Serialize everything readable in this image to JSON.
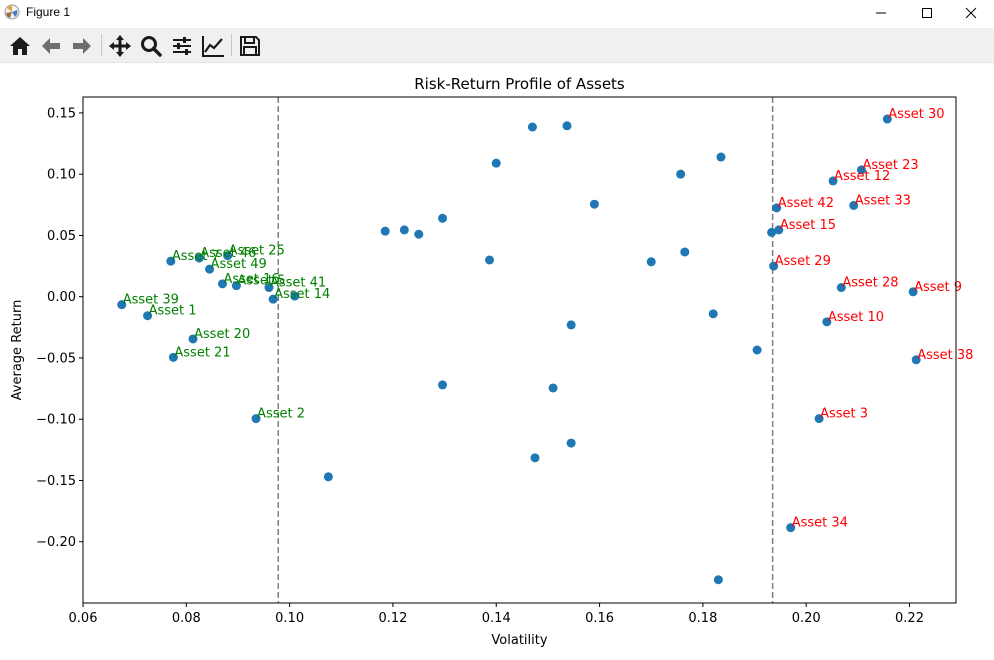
{
  "window": {
    "title": "Figure 1"
  },
  "toolbar": {
    "buttons": [
      {
        "name": "home-button",
        "icon": "home-icon"
      },
      {
        "name": "back-button",
        "icon": "arrow-left-icon"
      },
      {
        "name": "forward-button",
        "icon": "arrow-right-icon"
      },
      {
        "name": "pan-button",
        "icon": "move-icon"
      },
      {
        "name": "zoom-button",
        "icon": "magnifier-icon"
      },
      {
        "name": "configure-subplots-button",
        "icon": "sliders-icon"
      },
      {
        "name": "edit-axis-button",
        "icon": "line-chart-icon"
      },
      {
        "name": "save-button",
        "icon": "floppy-disk-icon"
      }
    ]
  },
  "chart_data": {
    "type": "scatter",
    "title": "Risk-Return Profile of Assets",
    "xlabel": "Volatility",
    "ylabel": "Average Return",
    "xlim": [
      0.06,
      0.229
    ],
    "ylim": [
      -0.25,
      0.163
    ],
    "xticks": [
      0.06,
      0.08,
      0.1,
      0.12,
      0.14,
      0.16,
      0.18,
      0.2,
      0.22
    ],
    "xtick_labels": [
      "0.06",
      "0.08",
      "0.10",
      "0.12",
      "0.14",
      "0.16",
      "0.18",
      "0.20",
      "0.22"
    ],
    "yticks": [
      0.15,
      0.1,
      0.05,
      0.0,
      -0.05,
      -0.1,
      -0.15,
      -0.2
    ],
    "ytick_labels": [
      "0.15",
      "0.10",
      "0.05",
      "0.00",
      "−0.05",
      "−0.10",
      "−0.15",
      "−0.20"
    ],
    "vlines": [
      0.0978,
      0.1935
    ],
    "colors": {
      "point": "#1f77b4",
      "low": "#008000",
      "high": "#ff0000",
      "vline": "#808080"
    },
    "points": [
      {
        "x": 0.0675,
        "y": -0.0065,
        "label": "Asset 39",
        "group": "low"
      },
      {
        "x": 0.0725,
        "y": -0.0155,
        "label": "Asset 1",
        "group": "low"
      },
      {
        "x": 0.077,
        "y": 0.029,
        "label": "Asset 7",
        "group": "low"
      },
      {
        "x": 0.0775,
        "y": -0.0495,
        "label": "Asset 21",
        "group": "low"
      },
      {
        "x": 0.0813,
        "y": -0.0345,
        "label": "Asset 20",
        "group": "low"
      },
      {
        "x": 0.0825,
        "y": 0.0315,
        "label": "Asset 46",
        "group": "low"
      },
      {
        "x": 0.0845,
        "y": 0.0225,
        "label": "Asset 49",
        "group": "low"
      },
      {
        "x": 0.087,
        "y": 0.0105,
        "label": "Asset 16",
        "group": "low"
      },
      {
        "x": 0.088,
        "y": 0.0335,
        "label": "Asset 25",
        "group": "low"
      },
      {
        "x": 0.0897,
        "y": 0.009,
        "label": "Asset 5",
        "group": "low"
      },
      {
        "x": 0.0935,
        "y": -0.0995,
        "label": "Asset 2",
        "group": "low"
      },
      {
        "x": 0.096,
        "y": 0.0075,
        "label": "Asset 41",
        "group": "low"
      },
      {
        "x": 0.0968,
        "y": -0.002,
        "label": "Asset 14",
        "group": "low"
      },
      {
        "x": 0.101,
        "y": 0.0005,
        "label": "",
        "group": "low"
      },
      {
        "x": 0.1075,
        "y": -0.147,
        "label": "",
        "group": "mid"
      },
      {
        "x": 0.1185,
        "y": 0.0535,
        "label": "",
        "group": "mid"
      },
      {
        "x": 0.1222,
        "y": 0.0545,
        "label": "",
        "group": "mid"
      },
      {
        "x": 0.125,
        "y": 0.051,
        "label": "",
        "group": "mid"
      },
      {
        "x": 0.1296,
        "y": 0.064,
        "label": "",
        "group": "mid"
      },
      {
        "x": 0.1296,
        "y": -0.072,
        "label": "",
        "group": "mid"
      },
      {
        "x": 0.1387,
        "y": 0.03,
        "label": "",
        "group": "mid"
      },
      {
        "x": 0.14,
        "y": 0.109,
        "label": "",
        "group": "mid"
      },
      {
        "x": 0.147,
        "y": 0.1385,
        "label": "",
        "group": "mid"
      },
      {
        "x": 0.1475,
        "y": -0.1315,
        "label": "",
        "group": "mid"
      },
      {
        "x": 0.151,
        "y": -0.0745,
        "label": "",
        "group": "mid"
      },
      {
        "x": 0.1537,
        "y": 0.1395,
        "label": "",
        "group": "mid"
      },
      {
        "x": 0.1545,
        "y": -0.023,
        "label": "",
        "group": "mid"
      },
      {
        "x": 0.1545,
        "y": -0.1195,
        "label": "",
        "group": "mid"
      },
      {
        "x": 0.159,
        "y": 0.0755,
        "label": "",
        "group": "mid"
      },
      {
        "x": 0.17,
        "y": 0.0285,
        "label": "",
        "group": "mid"
      },
      {
        "x": 0.1757,
        "y": 0.1,
        "label": "",
        "group": "mid"
      },
      {
        "x": 0.1765,
        "y": 0.0365,
        "label": "",
        "group": "mid"
      },
      {
        "x": 0.182,
        "y": -0.014,
        "label": "",
        "group": "mid"
      },
      {
        "x": 0.183,
        "y": -0.231,
        "label": "",
        "group": "mid"
      },
      {
        "x": 0.1835,
        "y": 0.114,
        "label": "",
        "group": "mid"
      },
      {
        "x": 0.1905,
        "y": -0.0435,
        "label": "",
        "group": "mid"
      },
      {
        "x": 0.1933,
        "y": 0.0525,
        "label": "",
        "group": "mid"
      },
      {
        "x": 0.1937,
        "y": 0.025,
        "label": "Asset 29",
        "group": "high"
      },
      {
        "x": 0.1943,
        "y": 0.0725,
        "label": "Asset 42",
        "group": "high"
      },
      {
        "x": 0.1947,
        "y": 0.0545,
        "label": "Asset 15",
        "group": "high"
      },
      {
        "x": 0.197,
        "y": -0.1885,
        "label": "Asset 34",
        "group": "high"
      },
      {
        "x": 0.2025,
        "y": -0.0995,
        "label": "Asset 3",
        "group": "high"
      },
      {
        "x": 0.204,
        "y": -0.0205,
        "label": "Asset 10",
        "group": "high"
      },
      {
        "x": 0.2052,
        "y": 0.0945,
        "label": "Asset 12",
        "group": "high"
      },
      {
        "x": 0.2068,
        "y": 0.0075,
        "label": "Asset 28",
        "group": "high"
      },
      {
        "x": 0.2092,
        "y": 0.0745,
        "label": "Asset 33",
        "group": "high"
      },
      {
        "x": 0.2107,
        "y": 0.1035,
        "label": "Asset 23",
        "group": "high"
      },
      {
        "x": 0.2157,
        "y": 0.145,
        "label": "Asset 30",
        "group": "high"
      },
      {
        "x": 0.2207,
        "y": 0.004,
        "label": "Asset 9",
        "group": "high"
      },
      {
        "x": 0.2213,
        "y": -0.0515,
        "label": "Asset 38",
        "group": "high"
      }
    ]
  }
}
